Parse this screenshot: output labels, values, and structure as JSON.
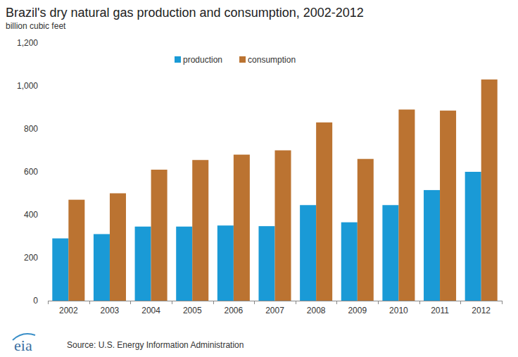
{
  "chart_data": {
    "type": "bar",
    "title": "Brazil's dry natural gas production and consumption, 2002-2012",
    "subtitle": "billion cubic feet",
    "source": "Source: U.S. Energy Information Administration",
    "logo_text": "eia",
    "categories": [
      "2002",
      "2003",
      "2004",
      "2005",
      "2006",
      "2007",
      "2008",
      "2009",
      "2010",
      "2011",
      "2012"
    ],
    "series": [
      {
        "name": "production",
        "color": "#1a9ad6",
        "values": [
          290,
          310,
          345,
          345,
          350,
          347,
          445,
          365,
          445,
          515,
          600
        ]
      },
      {
        "name": "consumption",
        "color": "#bb7331",
        "values": [
          470,
          500,
          610,
          655,
          680,
          700,
          830,
          660,
          890,
          885,
          1030
        ]
      }
    ],
    "ylim": [
      0,
      1200
    ],
    "yticks": [
      0,
      200,
      400,
      600,
      800,
      {
        "value": 1000,
        "label": "1,000"
      },
      {
        "value": 1200,
        "label": "1,200"
      }
    ],
    "grid": false,
    "legend": "top"
  }
}
